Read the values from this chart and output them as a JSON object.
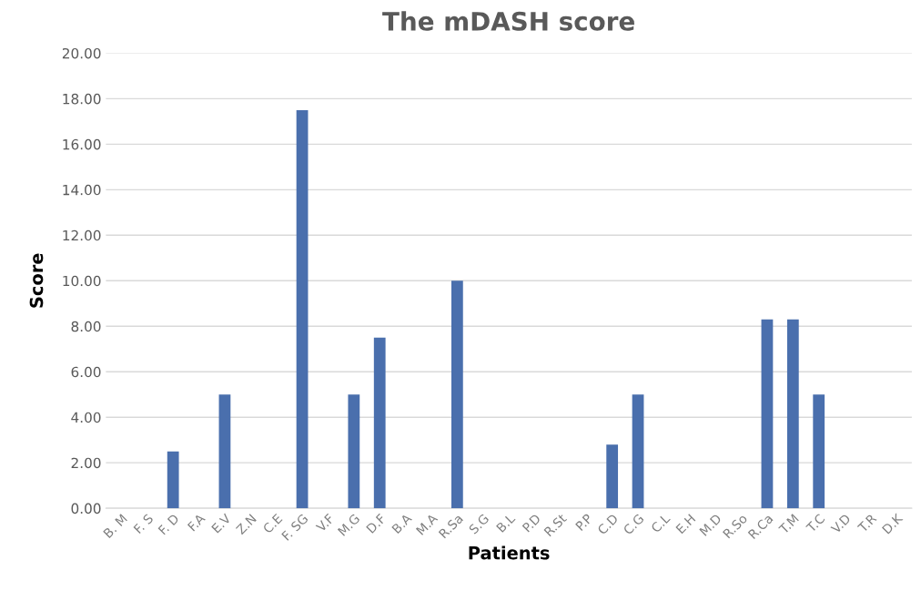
{
  "chart_data": {
    "type": "bar",
    "title": "The mDASH score",
    "xlabel": "Patients",
    "ylabel": "Score",
    "categories": [
      "B. M",
      "F. S",
      "F. D",
      "F.A",
      "E.V",
      "Z.N",
      "C.E",
      "F. SG",
      "V.F",
      "M.G",
      "D.F",
      "B.A",
      "M.A",
      "R.Sa",
      "S.G",
      "B.L",
      "P.D",
      "R.St",
      "P.P",
      "C.D",
      "C.G",
      "C.L",
      "E.H",
      "M.D",
      "R.So",
      "R.Ca",
      "T.M",
      "T.C",
      "V.D",
      "T.R",
      "D.K"
    ],
    "values": [
      0,
      0,
      2.5,
      0,
      5,
      0,
      0,
      17.5,
      0,
      5,
      7.5,
      0,
      0,
      10,
      0,
      0,
      0,
      0,
      0,
      2.8,
      5,
      0,
      0,
      0,
      0,
      8.3,
      8.3,
      5,
      0,
      0,
      0
    ],
    "color": "#4a6fad",
    "ylim": [
      0,
      20
    ],
    "yticks": [
      {
        "value": 0,
        "label": "0.00"
      },
      {
        "value": 2,
        "label": "2.00"
      },
      {
        "value": 4,
        "label": "4.00"
      },
      {
        "value": 6,
        "label": "6.00"
      },
      {
        "value": 8,
        "label": "8.00"
      },
      {
        "value": 10,
        "label": "10.00"
      },
      {
        "value": 12,
        "label": "12.00"
      },
      {
        "value": 14,
        "label": "14.00"
      },
      {
        "value": 16,
        "label": "16.00"
      },
      {
        "value": 18,
        "label": "18.00"
      },
      {
        "value": 20,
        "label": "20.00"
      }
    ],
    "grid": "y"
  }
}
